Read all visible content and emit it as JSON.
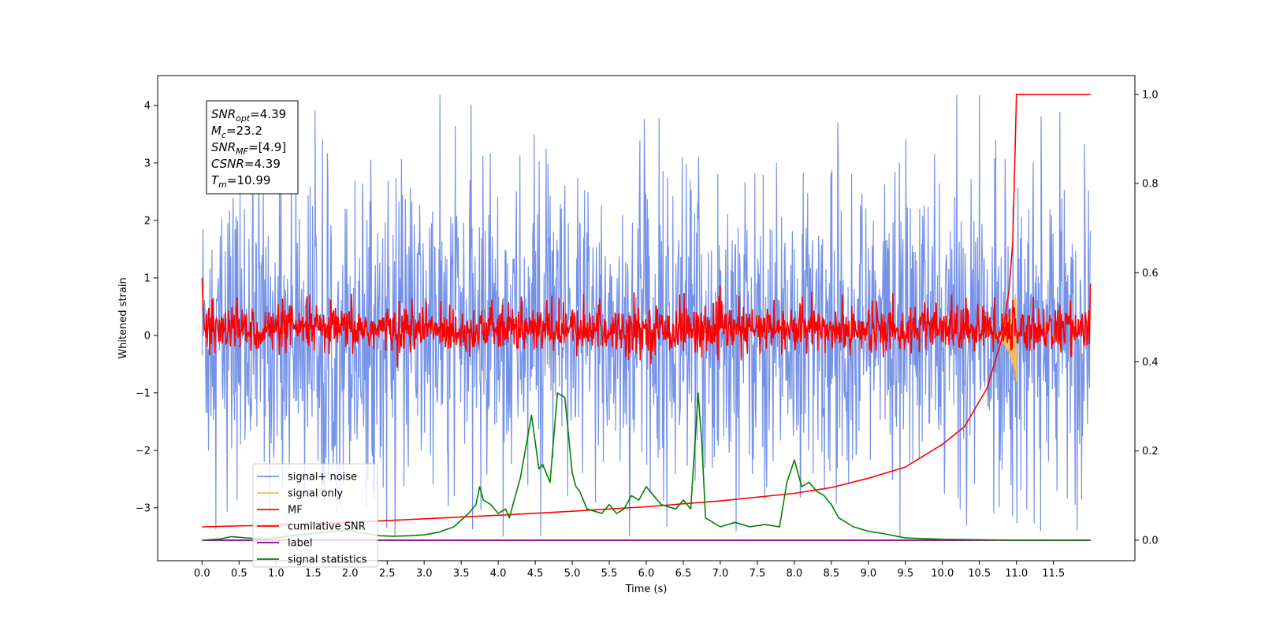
{
  "chart_data": {
    "type": "line",
    "xlabel": "Time (s)",
    "ylabel": "Whitened strain",
    "xlim": [
      -0.6,
      12.6
    ],
    "ylim": [
      -3.92,
      4.52
    ],
    "y2lim": [
      -0.046,
      1.042
    ],
    "x_ticks": [
      0.0,
      0.5,
      1.0,
      1.5,
      2.0,
      2.5,
      3.0,
      3.5,
      4.0,
      4.5,
      5.0,
      5.5,
      6.0,
      6.5,
      7.0,
      7.5,
      8.0,
      8.5,
      9.0,
      9.5,
      10.0,
      10.5,
      11.0,
      11.5
    ],
    "x_tick_labels": [
      "0.0",
      "0.5",
      "1.0",
      "1.5",
      "2.0",
      "2.5",
      "3.0",
      "3.5",
      "4.0",
      "4.5",
      "5.0",
      "5.5",
      "6.0",
      "6.5",
      "7.0",
      "7.5",
      "8.0",
      "8.5",
      "9.0",
      "9.5",
      "10.0",
      "10.5",
      "11.0",
      "11.5"
    ],
    "y_ticks": [
      4,
      3,
      2,
      1,
      0,
      -1,
      -2,
      -3
    ],
    "y_tick_labels": [
      "4",
      "3",
      "2",
      "1",
      "0",
      "−1",
      "−2",
      "−3"
    ],
    "y2_ticks": [
      1.0,
      0.8,
      0.6,
      0.4,
      0.2,
      0.0
    ],
    "y2_tick_labels": [
      "1.0",
      "0.8",
      "0.6",
      "0.4",
      "0.2",
      "0.0"
    ],
    "grid": false,
    "legend_position": "lower-left",
    "info_box": [
      {
        "base": "SNR",
        "sub": "opt",
        "rest": "=4.39"
      },
      {
        "base": "M",
        "sub": "c",
        "rest": "=23.2"
      },
      {
        "base": "SNR",
        "sub": "MF",
        "rest": "=[4.9]"
      },
      {
        "base": "CSNR",
        "sub": "",
        "rest": "=4.39"
      },
      {
        "base": "T",
        "sub": "m",
        "rest": "=10.99"
      }
    ],
    "series": [
      {
        "name": "signal+ noise",
        "color": "#7592e7",
        "axis": "left",
        "kind": "noise",
        "t_range": [
          0.0,
          12.0
        ],
        "typical_range": [
          -2.3,
          2.4
        ],
        "extremes": [
          -3.5,
          4.18
        ]
      },
      {
        "name": "signal only",
        "color": "#f5bd63",
        "axis": "left",
        "kind": "chirp",
        "t_range": [
          10.6,
          11.0
        ],
        "peak": 0.85
      },
      {
        "name": "MF",
        "color": "#ff0000",
        "axis": "left",
        "kind": "noise",
        "t_range": [
          0.0,
          12.0
        ],
        "typical_range": [
          -0.35,
          0.65
        ],
        "start_value": 1.0,
        "end_value": 0.9
      },
      {
        "name": "cumilative SNR",
        "color": "#ff0000",
        "axis": "right",
        "x": [
          0.0,
          1.0,
          2.0,
          3.0,
          4.0,
          5.0,
          6.0,
          7.0,
          8.0,
          8.5,
          9.0,
          9.5,
          10.0,
          10.3,
          10.6,
          10.8,
          10.9,
          10.95,
          10.99,
          11.0,
          12.0
        ],
        "y": [
          0.03,
          0.034,
          0.04,
          0.048,
          0.056,
          0.065,
          0.075,
          0.088,
          0.105,
          0.118,
          0.139,
          0.164,
          0.215,
          0.255,
          0.34,
          0.45,
          0.56,
          0.67,
          0.93,
          1.0,
          1.0
        ]
      },
      {
        "name": "label",
        "color": "#800080",
        "axis": "right",
        "x": [
          0.0,
          12.0
        ],
        "y": [
          0.0,
          0.0
        ]
      },
      {
        "name": "signal statistics",
        "color": "#008000",
        "axis": "right",
        "x": [
          0.0,
          0.25,
          0.4,
          0.6,
          0.8,
          1.0,
          1.2,
          1.5,
          1.8,
          2.0,
          2.2,
          2.4,
          2.6,
          2.8,
          3.0,
          3.2,
          3.4,
          3.5,
          3.6,
          3.7,
          3.75,
          3.8,
          3.9,
          4.0,
          4.1,
          4.15,
          4.3,
          4.45,
          4.55,
          4.6,
          4.7,
          4.8,
          4.9,
          5.0,
          5.05,
          5.1,
          5.2,
          5.4,
          5.5,
          5.6,
          5.7,
          5.8,
          5.9,
          6.0,
          6.2,
          6.4,
          6.5,
          6.6,
          6.7,
          6.75,
          6.8,
          6.9,
          7.0,
          7.2,
          7.4,
          7.6,
          7.8,
          7.9,
          8.0,
          8.1,
          8.2,
          8.3,
          8.4,
          8.5,
          8.6,
          8.8,
          9.0,
          9.2,
          9.5,
          10.0,
          11.0,
          12.0
        ],
        "y": [
          0.0,
          0.003,
          0.008,
          0.005,
          0.003,
          0.005,
          0.01,
          0.015,
          0.02,
          0.022,
          0.015,
          0.01,
          0.009,
          0.01,
          0.012,
          0.018,
          0.03,
          0.045,
          0.06,
          0.08,
          0.12,
          0.09,
          0.08,
          0.06,
          0.07,
          0.05,
          0.14,
          0.28,
          0.16,
          0.17,
          0.13,
          0.33,
          0.32,
          0.15,
          0.12,
          0.11,
          0.07,
          0.06,
          0.08,
          0.06,
          0.07,
          0.1,
          0.09,
          0.12,
          0.08,
          0.07,
          0.09,
          0.07,
          0.33,
          0.22,
          0.05,
          0.04,
          0.03,
          0.04,
          0.03,
          0.035,
          0.03,
          0.13,
          0.18,
          0.12,
          0.13,
          0.11,
          0.1,
          0.08,
          0.05,
          0.03,
          0.02,
          0.015,
          0.005,
          0.002,
          0.0,
          0.0
        ]
      }
    ]
  }
}
